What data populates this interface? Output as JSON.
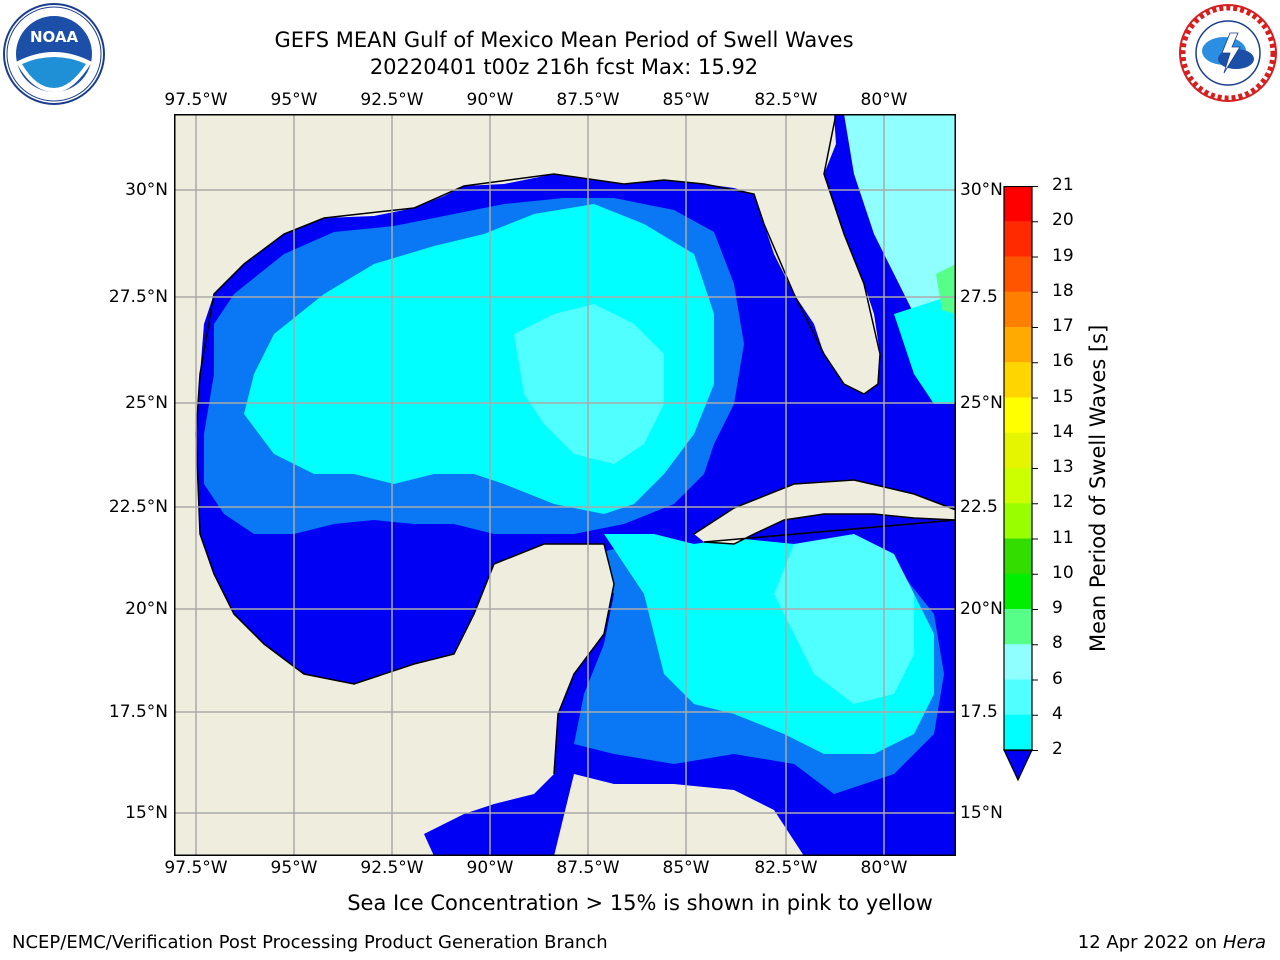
{
  "header": {
    "title_line1": "GEFS MEAN Gulf of Mexico Mean Period of Swell Waves",
    "title_line2": "20220401 t00z 216h fcst   Max: 15.92"
  },
  "logos": {
    "left": "noara-logo",
    "right": "nws-logo"
  },
  "map": {
    "lon_ticks": [
      "97.5°W",
      "95°W",
      "92.5°W",
      "90°W",
      "87.5°W",
      "85°W",
      "82.5°W",
      "80°W"
    ],
    "lat_ticks": [
      "30°N",
      "27.5°N",
      "25°N",
      "22.5°N",
      "20°N",
      "17.5°N",
      "15°N"
    ],
    "right_lat_ticks": [
      "30°N",
      "27.5",
      "25°N",
      "22.5",
      "20°N",
      "17.5",
      "15°N"
    ],
    "colors": {
      "land": "#efedde",
      "ocean_low": "#0000f5",
      "ocean_mid": "#0a78f5",
      "ocean_cyan": "#00ffff",
      "ocean_light": "#50ffff",
      "ocean_pale": "#90ffff",
      "grid": "#aaaaaa"
    }
  },
  "colorbar": {
    "title": "Mean Period of Swell Waves [s]",
    "labels": [
      "21",
      "20",
      "19",
      "18",
      "17",
      "16",
      "15",
      "14",
      "13",
      "12",
      "11",
      "10",
      "9",
      "8",
      "6",
      "4",
      "2"
    ],
    "colors": [
      "#ff0000",
      "#ff2a00",
      "#ff5500",
      "#ff8000",
      "#ffaa00",
      "#ffd500",
      "#ffff00",
      "#e5f500",
      "#ccff00",
      "#99ff00",
      "#33dd00",
      "#00ee00",
      "#55ff88",
      "#90ffff",
      "#50ffff",
      "#00ffff",
      "#0a78f5"
    ],
    "extend_color": "#0000f5"
  },
  "footer": {
    "note": "Sea Ice Concentration > 15% is shown in pink to yellow",
    "left": "NCEP/EMC/Verification Post Processing Product Generation Branch",
    "right_date": "12 Apr 2022 on ",
    "right_host": "Hera"
  }
}
